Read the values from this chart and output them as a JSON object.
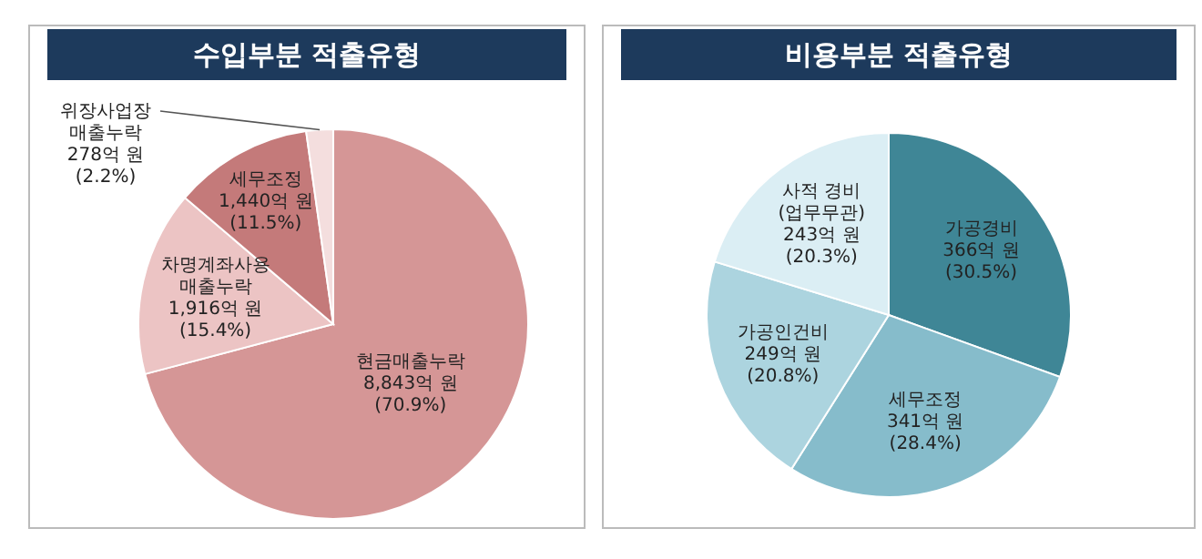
{
  "chart_data": [
    {
      "type": "pie",
      "title": "수입부분 적출유형",
      "categories": [
        "현금매출누락",
        "차명계좌사용\n매출누락",
        "세무조정",
        "위장사업장\n매출누락"
      ],
      "values": [
        8843,
        1916,
        1440,
        278
      ],
      "value_labels": [
        "8,843억 원\n(70.9%)",
        "1,916억 원\n(15.4%)",
        "1,440억 원\n(11.5%)",
        "278억 원\n(2.2%)"
      ],
      "colors": [
        "#d59696",
        "#ecc4c4",
        "#c47a7a",
        "#f4dede"
      ]
    },
    {
      "type": "pie",
      "title": "비용부분 적출유형",
      "categories": [
        "가공경비",
        "세무조정",
        "가공인건비",
        "사적 경비\n(업무무관)"
      ],
      "values": [
        366,
        341,
        249,
        243
      ],
      "value_labels": [
        "366억 원\n(30.5%)",
        "341억 원\n(28.4%)",
        "249억 원\n(20.8%)",
        "243억 원\n(20.3%)"
      ],
      "colors": [
        "#3f8696",
        "#86bccb",
        "#acd4df",
        "#dbeef4"
      ]
    }
  ]
}
